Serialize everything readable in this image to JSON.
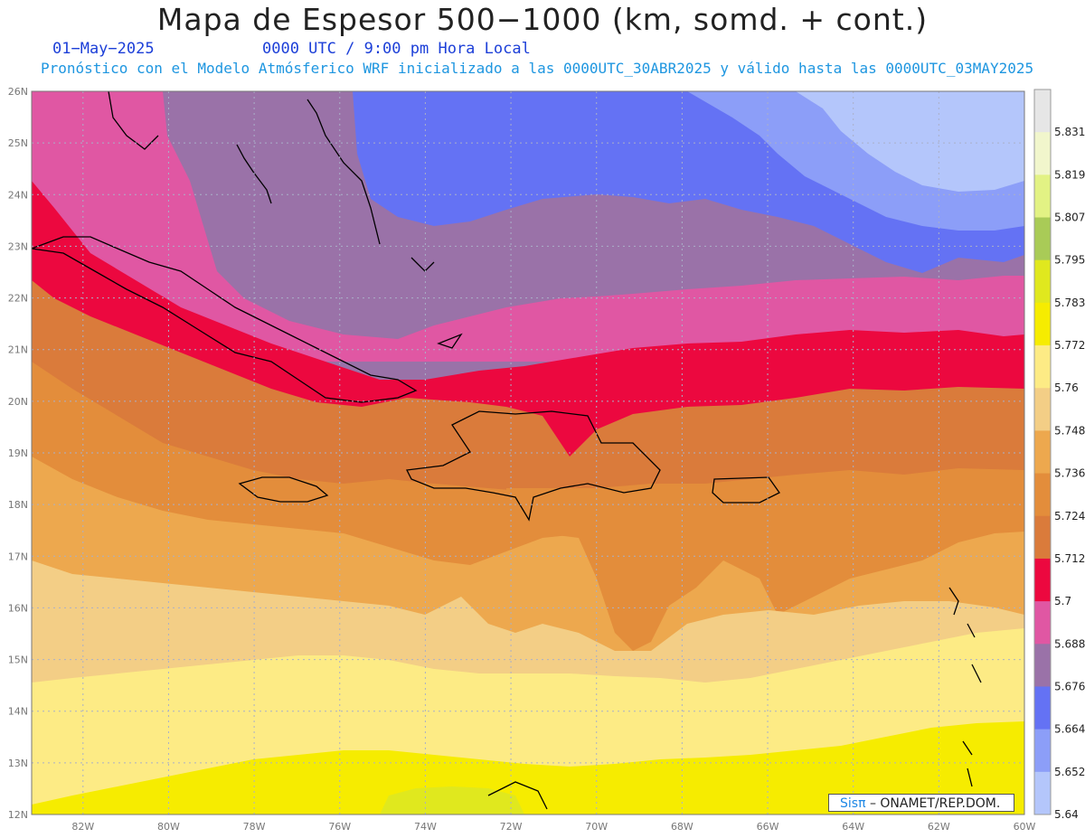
{
  "header": {
    "title": "Mapa de Espesor 500−1000 (km, somd. + cont.)",
    "date": "01−May−2025",
    "time": "0000 UTC / 9:00 pm Hora Local",
    "subtitle": "Pronóstico con el Modelo Atmósferico WRF inicializado a las 0000UTC_30ABR2025 y válido hasta las  0000UTC_03MAY2025"
  },
  "axes": {
    "lat_labels": [
      "26N",
      "25N",
      "24N",
      "23N",
      "22N",
      "21N",
      "20N",
      "19N",
      "18N",
      "17N",
      "16N",
      "15N",
      "14N",
      "13N",
      "12N"
    ],
    "lon_labels": [
      "82W",
      "80W",
      "78W",
      "76W",
      "74W",
      "72W",
      "70W",
      "68W",
      "66W",
      "64W",
      "62W",
      "60W"
    ]
  },
  "legend": {
    "labels": [
      "5.831",
      "5.819",
      "5.807",
      "5.795",
      "5.783",
      "5.772",
      "5.76",
      "5.748",
      "5.736",
      "5.724",
      "5.712",
      "5.7",
      "5.688",
      "5.676",
      "5.664",
      "5.652",
      "5.64"
    ],
    "colors": [
      "#e6e6e6",
      "#f1f6cc",
      "#e2f284",
      "#a9cb57",
      "#e0e81e",
      "#f6ec00",
      "#fdeb85",
      "#f3ce86",
      "#eda84e",
      "#e38d3b",
      "#da7b3b",
      "#ec083f",
      "#e057a3",
      "#9a72a8",
      "#6472f4",
      "#8c9ef8",
      "#b4c6fb"
    ]
  },
  "map": {
    "band_colors": {
      "very_light_blue": "#b4c6fb",
      "light_blue": "#8c9ef8",
      "blue": "#6472f4",
      "purple": "#9a72a8",
      "pink": "#e057a3",
      "red": "#ec083f",
      "dark_orange": "#da7b3b",
      "orange": "#e38d3b",
      "light_orange": "#eda84e",
      "tan": "#f3ce86",
      "light_yellow": "#fdeb85",
      "yellow": "#f6ec00",
      "yellow_green": "#e0e81e"
    },
    "coastline_color": "#000000"
  },
  "credit": {
    "sis": "Sisπ",
    "text": "– ONAMET/REP.DOM."
  }
}
